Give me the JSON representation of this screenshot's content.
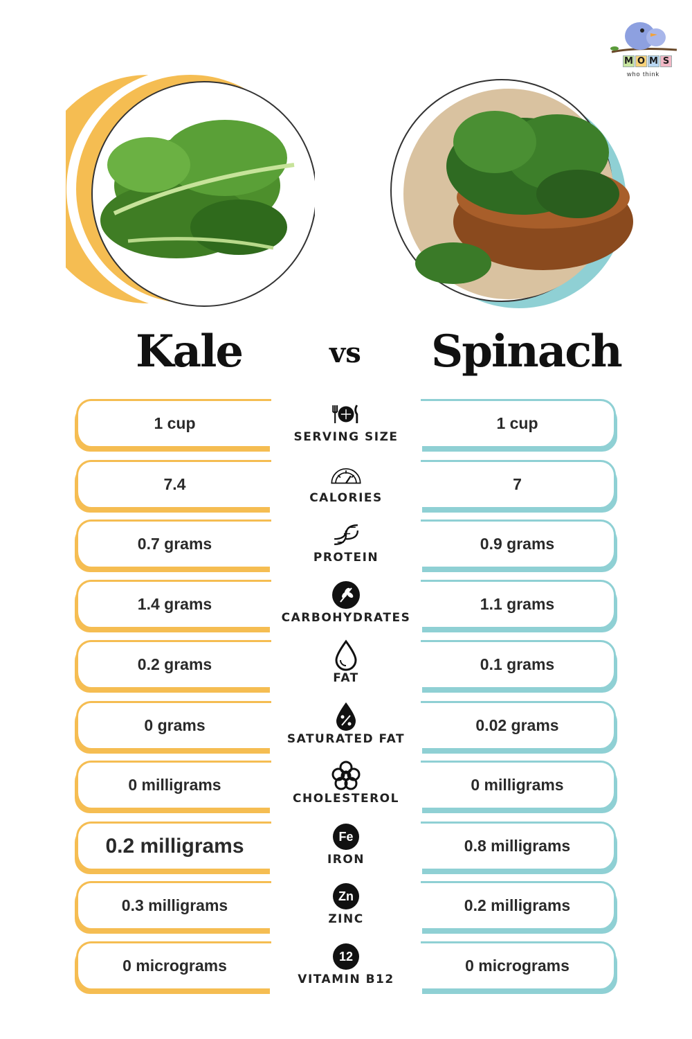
{
  "logo": {
    "letters": [
      "M",
      "O",
      "M",
      "S"
    ],
    "tagline": "who think",
    "colors": [
      "#c8e6a0",
      "#f7d27a",
      "#b9d7f2",
      "#f2b8c6"
    ]
  },
  "titles": {
    "left": "Kale",
    "vs": "vs",
    "right": "Spinach"
  },
  "colors": {
    "kale_accent": "#f5bd52",
    "spinach_accent": "#8fd0d4"
  },
  "rows": [
    {
      "label": "SERVING SIZE",
      "icon": "utensils-plate-icon",
      "kale": "1 cup",
      "spinach": "1 cup"
    },
    {
      "label": "CALORIES",
      "icon": "gauge-icon",
      "kale": "7.4",
      "spinach": "7"
    },
    {
      "label": "PROTEIN",
      "icon": "dna-icon",
      "kale": "0.7 grams",
      "spinach": "0.9 grams"
    },
    {
      "label": "CARBOHYDRATES",
      "icon": "wheat-icon",
      "kale": "1.4 grams",
      "spinach": "1.1 grams"
    },
    {
      "label": "FAT",
      "icon": "drop-icon",
      "kale": "0.2 grams",
      "spinach": "0.1 grams"
    },
    {
      "label": "SATURATED FAT",
      "icon": "percent-drop-icon",
      "kale": "0 grams",
      "spinach": "0.02 grams"
    },
    {
      "label": "CHOLESTEROL",
      "icon": "molecule-icon",
      "kale": "0 milligrams",
      "spinach": "0 milligrams"
    },
    {
      "label": "IRON",
      "icon": "fe-badge-icon",
      "badge": "Fe",
      "kale": "0.2 milligrams",
      "spinach": "0.8 milligrams"
    },
    {
      "label": "ZINC",
      "icon": "zn-badge-icon",
      "badge": "Zn",
      "kale": "0.3 milligrams",
      "spinach": "0.2 milligrams"
    },
    {
      "label": "VITAMIN B12",
      "icon": "b12-badge-icon",
      "badge": "12",
      "kale": "0 micrograms",
      "spinach": "0 micrograms"
    }
  ]
}
